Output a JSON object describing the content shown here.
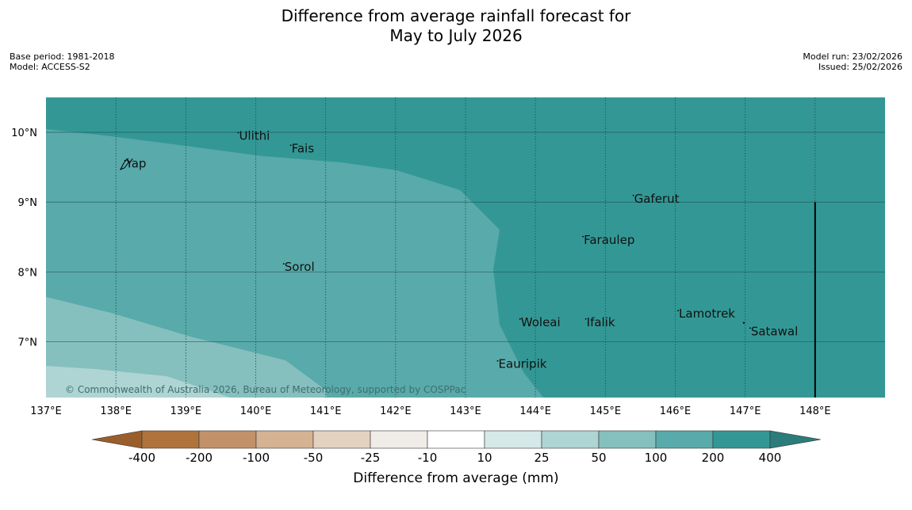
{
  "title": {
    "line1": "Difference from average rainfall forecast for",
    "line2": "May to July 2026"
  },
  "meta_left": {
    "base_period": "Base period: 1981-2018",
    "model": "Model: ACCESS-S2"
  },
  "meta_right": {
    "model_run": "Model run: 23/02/2026",
    "issued": "Issued: 25/02/2026"
  },
  "map": {
    "extent": {
      "lon_min": 137.0,
      "lon_max": 149.0,
      "lat_min": 6.2,
      "lat_max": 10.5
    },
    "lon_ticks": [
      {
        "value": 137,
        "label": "137°E"
      },
      {
        "value": 138,
        "label": "138°E"
      },
      {
        "value": 139,
        "label": "139°E"
      },
      {
        "value": 140,
        "label": "140°E"
      },
      {
        "value": 141,
        "label": "141°E"
      },
      {
        "value": 142,
        "label": "142°E"
      },
      {
        "value": 143,
        "label": "143°E"
      },
      {
        "value": 144,
        "label": "144°E"
      },
      {
        "value": 145,
        "label": "145°E"
      },
      {
        "value": 146,
        "label": "146°E"
      },
      {
        "value": 147,
        "label": "147°E"
      },
      {
        "value": 148,
        "label": "148°E"
      }
    ],
    "lat_ticks": [
      {
        "value": 10,
        "label": "10°N"
      },
      {
        "value": 9,
        "label": "9°N"
      },
      {
        "value": 8,
        "label": "8°N"
      },
      {
        "value": 7,
        "label": "7°N"
      }
    ],
    "places": [
      {
        "name": "Ulithi",
        "lon": 139.75,
        "lat": 9.95
      },
      {
        "name": "Fais",
        "lon": 140.5,
        "lat": 9.77
      },
      {
        "name": "Yap",
        "lon": 138.13,
        "lat": 9.55
      },
      {
        "name": "Gaferut",
        "lon": 145.4,
        "lat": 9.05
      },
      {
        "name": "Faraulep",
        "lon": 144.68,
        "lat": 8.46
      },
      {
        "name": "Sorol",
        "lon": 140.4,
        "lat": 8.07
      },
      {
        "name": "Lamotrek",
        "lon": 146.04,
        "lat": 7.4
      },
      {
        "name": "Woleai",
        "lon": 143.78,
        "lat": 7.28
      },
      {
        "name": "Ifalik",
        "lon": 144.72,
        "lat": 7.28
      },
      {
        "name": "Satawal",
        "lon": 147.07,
        "lat": 7.15
      },
      {
        "name": "Eauripik",
        "lon": 143.46,
        "lat": 6.68
      }
    ],
    "boundary_line": {
      "lon": 148.0,
      "lat_top": 9.0,
      "lat_bottom": 6.2
    },
    "copyright": "© Commonwealth of Australia 2026, Bureau of Meteorology, supported by COSPPac"
  },
  "colorbar": {
    "label": "Difference from average (mm)",
    "ticks": [
      "-400",
      "-200",
      "-100",
      "-50",
      "-25",
      "-10",
      "10",
      "25",
      "50",
      "100",
      "200",
      "400"
    ],
    "colors": {
      "lt_minus400": "#9a5e2c",
      "m400_m200": "#b0733c",
      "m200_m100": "#c29169",
      "m100_m50": "#d4b292",
      "m50_m25": "#e4d2c1",
      "m25_m10": "#f0ece8",
      "m10_10": "#ffffff",
      "10_25": "#d4e9e8",
      "25_50": "#aed4d3",
      "50_100": "#85bfbe",
      "100_200": "#59aaaa",
      "200_400": "#339895",
      "gt_400": "#2a7d7b"
    }
  }
}
